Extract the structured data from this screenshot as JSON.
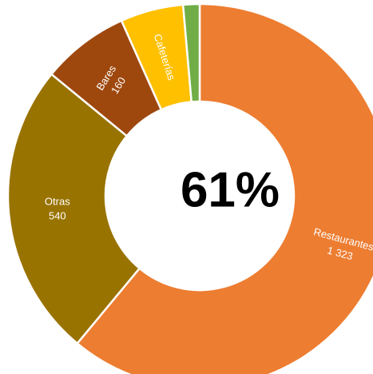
{
  "chart_data": {
    "type": "donut",
    "categories": [
      "Restaurantes",
      "Otras",
      "Bares",
      "Cafeterías",
      null
    ],
    "values": [
      1323,
      540,
      160,
      115,
      30
    ],
    "value_labels": [
      "1 323",
      "540",
      "160",
      null,
      null
    ],
    "colors": [
      "#ED7D31",
      "#997300",
      "#9E480E",
      "#FFC000",
      "#70AD47"
    ],
    "center_label": "61%"
  }
}
